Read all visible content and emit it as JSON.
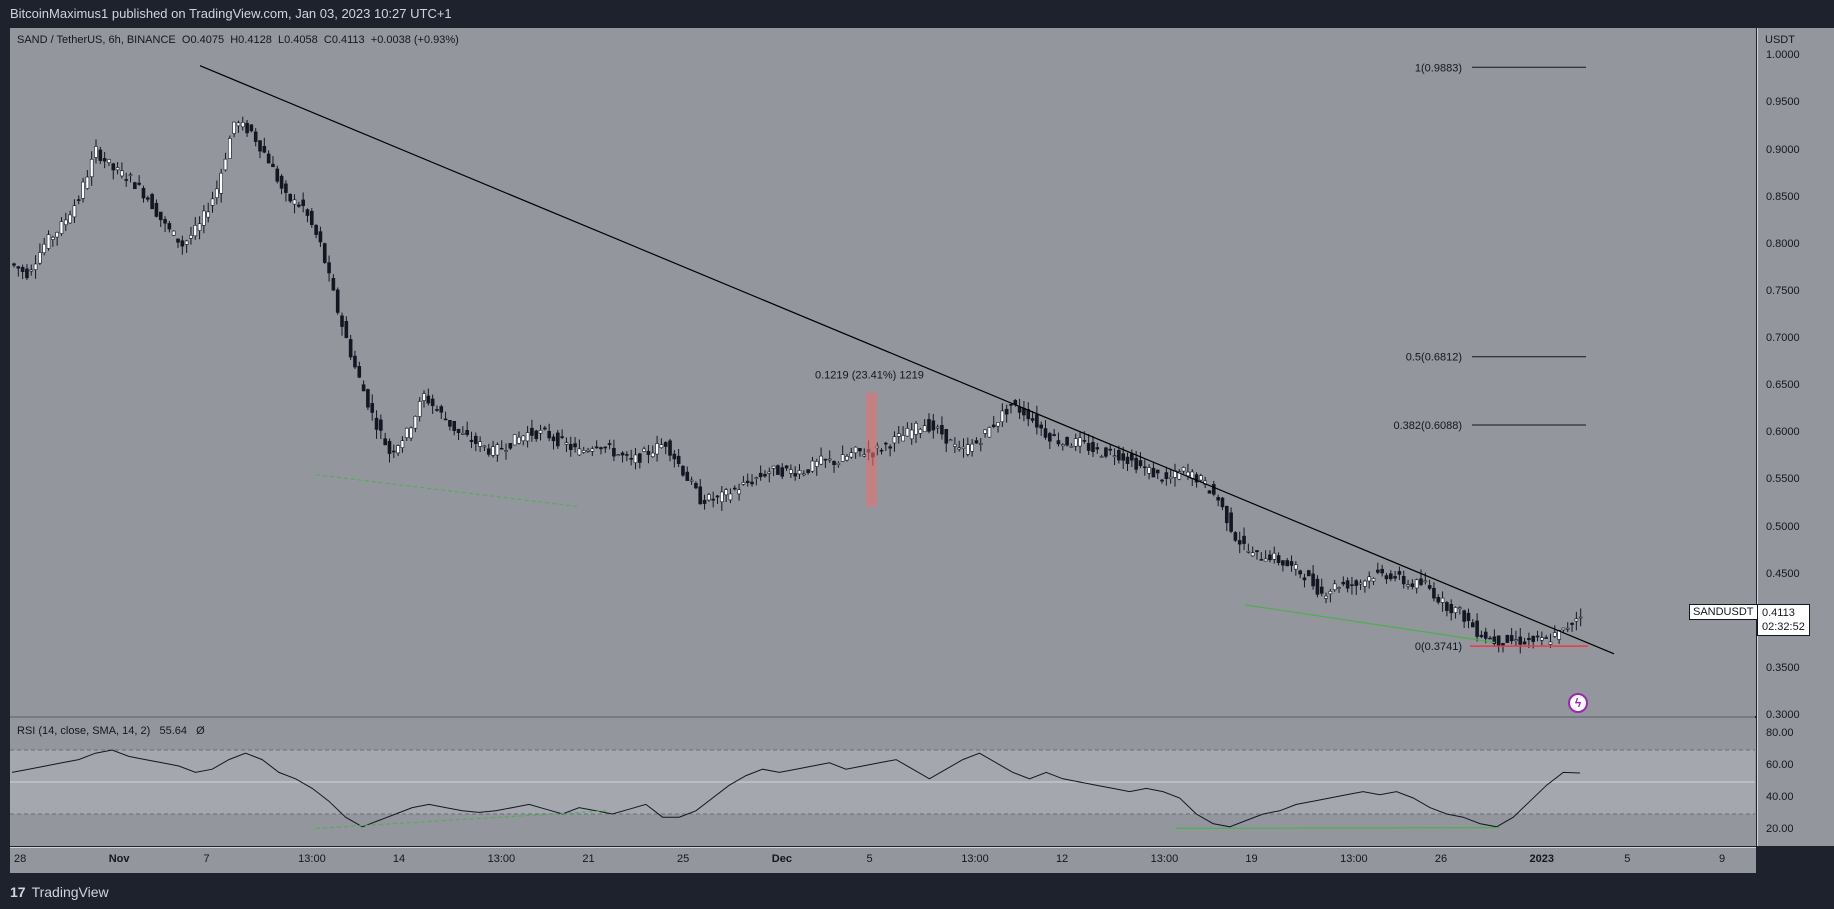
{
  "header": {
    "publisher_text": "BitcoinMaximus1 published on TradingView.com, Jan 03, 2023 10:27 UTC+1"
  },
  "legend": {
    "symbol": "SAND / TetherUS, 6h, BINANCE",
    "o_label": "O",
    "o_value": "0.4075",
    "h_label": "H",
    "h_value": "0.4128",
    "l_label": "L",
    "l_value": "0.4058",
    "c_label": "C",
    "c_value": "0.4113",
    "change": "+0.0038 (+0.93%)"
  },
  "rsi_legend": {
    "text": "RSI (14, close, SMA, 14, 2)",
    "value": "55.64",
    "symbol": "Ø"
  },
  "price_axis": {
    "currency": "USDT",
    "ticks": [
      "1.0000",
      "0.9500",
      "0.9000",
      "0.8500",
      "0.8000",
      "0.7500",
      "0.7000",
      "0.6500",
      "0.6000",
      "0.5500",
      "0.5000",
      "0.4500",
      "0.4000",
      "0.3500",
      "0.3000"
    ]
  },
  "rsi_axis": {
    "ticks": [
      "80.00",
      "60.00",
      "40.00",
      "20.00"
    ]
  },
  "time_axis": {
    "ticks": [
      "28",
      "Nov",
      "7",
      "13:00",
      "14",
      "13:00",
      "21",
      "25",
      "Dec",
      "5",
      "13:00",
      "12",
      "13:00",
      "19",
      "13:00",
      "26",
      "2023",
      "5",
      "9"
    ]
  },
  "symbol_tag": {
    "name": "SANDUSDT",
    "price": "0.4113",
    "countdown": "02:32:52"
  },
  "fib_levels": [
    {
      "label": "1(0.9883)",
      "value": 0.9883
    },
    {
      "label": "0.5(0.6812)",
      "value": 0.6812
    },
    {
      "label": "0.382(0.6088)",
      "value": 0.6088
    },
    {
      "label": "0(0.3741)",
      "value": 0.3741
    }
  ],
  "measure_label": "0.1219 (23.41%) 1219",
  "footer": {
    "brand": "TradingView",
    "brand_mark": "17"
  },
  "colors": {
    "pane_bg": "#93969c",
    "outer_bg": "#1e222d",
    "candle_up": "#ffffff",
    "candle_down": "#131722",
    "trendline": "#000000",
    "divergence": "#4caf50",
    "support": "#f23645",
    "measure_box": "#e57373"
  },
  "chart_data": {
    "type": "candlestick",
    "title": "SAND / TetherUS, 6h, BINANCE",
    "ylabel": "USDT",
    "ylim": [
      0.3,
      1.03
    ],
    "x_ticks": [
      "28",
      "Nov",
      "7",
      "13:00",
      "14",
      "13:00",
      "21",
      "25",
      "Dec",
      "5",
      "13:00",
      "12",
      "13:00",
      "19",
      "13:00",
      "26",
      "2023",
      "5",
      "9"
    ],
    "price_path": [
      0.78,
      0.77,
      0.8,
      0.82,
      0.85,
      0.9,
      0.88,
      0.87,
      0.85,
      0.82,
      0.8,
      0.82,
      0.86,
      0.93,
      0.92,
      0.89,
      0.85,
      0.84,
      0.8,
      0.73,
      0.67,
      0.62,
      0.58,
      0.6,
      0.64,
      0.62,
      0.6,
      0.59,
      0.58,
      0.59,
      0.6,
      0.6,
      0.59,
      0.58,
      0.59,
      0.58,
      0.57,
      0.58,
      0.59,
      0.56,
      0.53,
      0.53,
      0.54,
      0.55,
      0.56,
      0.56,
      0.56,
      0.57,
      0.57,
      0.58,
      0.58,
      0.59,
      0.6,
      0.61,
      0.6,
      0.58,
      0.59,
      0.61,
      0.63,
      0.62,
      0.6,
      0.59,
      0.59,
      0.58,
      0.58,
      0.57,
      0.56,
      0.55,
      0.56,
      0.55,
      0.53,
      0.49,
      0.47,
      0.47,
      0.46,
      0.45,
      0.43,
      0.44,
      0.44,
      0.45,
      0.45,
      0.44,
      0.44,
      0.42,
      0.41,
      0.39,
      0.38,
      0.38,
      0.38,
      0.38,
      0.39,
      0.41
    ],
    "trendline": {
      "start_value": 0.99,
      "end_value": 0.366
    },
    "rsi": {
      "name": "RSI (14, close, SMA, 14, 2)",
      "ylim": [
        10,
        90
      ],
      "bands": [
        70,
        50,
        30
      ],
      "values": [
        56,
        58,
        60,
        62,
        64,
        68,
        70,
        66,
        64,
        62,
        60,
        56,
        58,
        64,
        68,
        64,
        56,
        52,
        46,
        38,
        28,
        22,
        26,
        30,
        34,
        36,
        34,
        32,
        31,
        32,
        34,
        36,
        33,
        30,
        34,
        32,
        30,
        33,
        36,
        28,
        28,
        32,
        40,
        48,
        54,
        58,
        56,
        58,
        60,
        62,
        58,
        60,
        62,
        64,
        58,
        52,
        58,
        64,
        68,
        62,
        56,
        52,
        56,
        52,
        50,
        48,
        46,
        44,
        46,
        44,
        40,
        30,
        24,
        22,
        26,
        30,
        32,
        36,
        38,
        40,
        42,
        44,
        42,
        44,
        40,
        34,
        30,
        28,
        24,
        22,
        28,
        38,
        48,
        56,
        55.64
      ]
    },
    "annotations": {
      "measure": "0.1219 (23.41%) 1219",
      "fibonacci": [
        "1(0.9883)",
        "0.5(0.6812)",
        "0.382(0.6088)",
        "0(0.3741)"
      ]
    }
  }
}
